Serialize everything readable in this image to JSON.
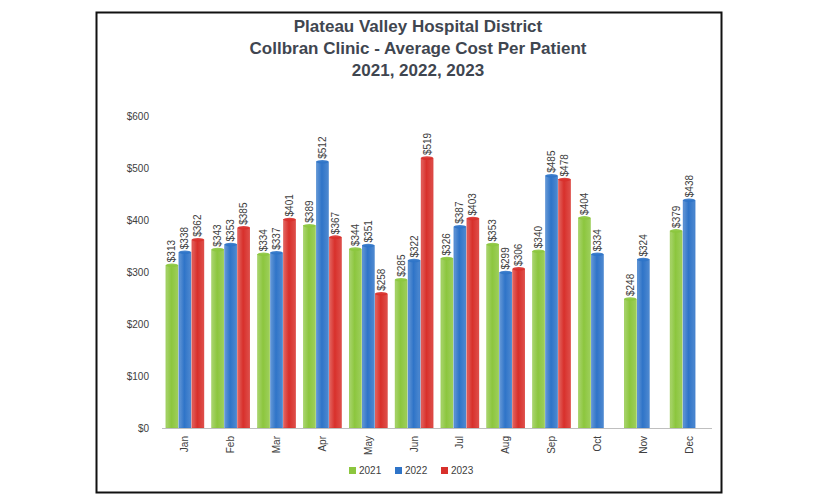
{
  "chart_data": {
    "type": "bar",
    "title": "Plateau Valley Hospital District\nCollbran Clinic  - Average Cost Per Patient\n2021, 2022, 2023",
    "categories": [
      "Jan",
      "Feb",
      "Mar",
      "Apr",
      "May",
      "Jun",
      "Jul",
      "Aug",
      "Sep",
      "Oct",
      "Nov",
      "Dec"
    ],
    "series": [
      {
        "name": "2021",
        "color": "#8cc63e",
        "values": [
          313,
          343,
          334,
          389,
          344,
          285,
          326,
          353,
          340,
          404,
          248,
          379
        ],
        "value_labels": [
          "$313",
          "$343",
          "$334",
          "$389",
          "$344",
          "$285",
          "$326",
          "$353",
          "$340",
          "$404",
          "$248",
          "$379"
        ]
      },
      {
        "name": "2022",
        "color": "#2f74c8",
        "values": [
          338,
          353,
          337,
          512,
          351,
          322,
          387,
          299,
          485,
          334,
          324,
          438
        ],
        "value_labels": [
          "$338",
          "$353",
          "$337",
          "$512",
          "$351",
          "$322",
          "$387",
          "$299",
          "$485",
          "$334",
          "$324",
          "$438"
        ]
      },
      {
        "name": "2023",
        "color": "#d8302b",
        "values": [
          362,
          385,
          401,
          367,
          258,
          519,
          403,
          306,
          478,
          null,
          null,
          null
        ],
        "value_labels": [
          "$362",
          "$385",
          "$401",
          "$367",
          "$258",
          "$519",
          "$403",
          "$306",
          "$478",
          null,
          null,
          null
        ]
      }
    ],
    "ylim": [
      0,
      600
    ],
    "yticks": [
      {
        "value": 0,
        "label": "$0"
      },
      {
        "value": 100,
        "label": "$100"
      },
      {
        "value": 200,
        "label": "$200"
      },
      {
        "value": 300,
        "label": "$300"
      },
      {
        "value": 400,
        "label": "$400"
      },
      {
        "value": 500,
        "label": "$500"
      },
      {
        "value": 600,
        "label": "$600"
      }
    ],
    "grid": false,
    "legend": "bottom",
    "data_labels": true
  }
}
